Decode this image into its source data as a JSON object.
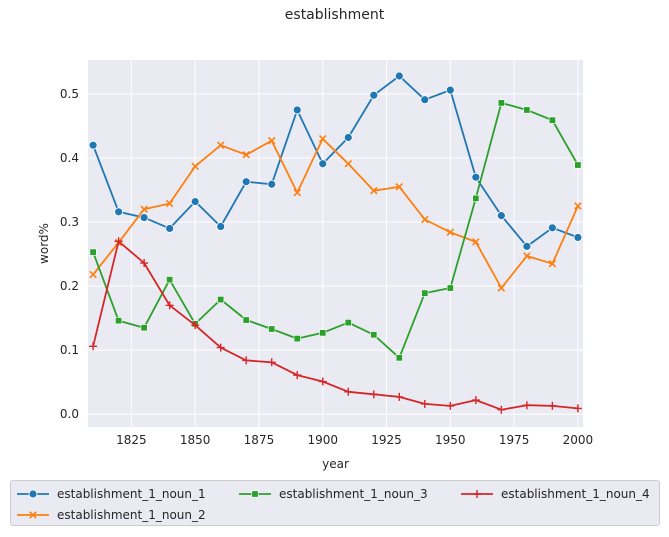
{
  "chart_data": {
    "type": "line",
    "title": "establishment",
    "xlabel": "year",
    "ylabel": "word%",
    "xlim": [
      1808,
      2002
    ],
    "ylim": [
      -0.02,
      0.553
    ],
    "x_ticks": [
      "1825",
      "1850",
      "1875",
      "1900",
      "1925",
      "1950",
      "1975",
      "2000"
    ],
    "y_ticks": [
      "0.0",
      "0.1",
      "0.2",
      "0.3",
      "0.4",
      "0.5"
    ],
    "grid": true,
    "legend_position": "below",
    "x": [
      1810,
      1820,
      1830,
      1840,
      1850,
      1860,
      1870,
      1880,
      1890,
      1900,
      1910,
      1920,
      1930,
      1940,
      1950,
      1960,
      1970,
      1980,
      1990,
      2000
    ],
    "series": [
      {
        "name": "establishment_1_noun_1",
        "color": "#1f77b4",
        "marker": "circle",
        "values": [
          0.42,
          0.316,
          0.307,
          0.29,
          0.332,
          0.293,
          0.363,
          0.359,
          0.475,
          0.391,
          0.432,
          0.498,
          0.528,
          0.491,
          0.506,
          0.37,
          0.31,
          0.262,
          0.291,
          0.276
        ]
      },
      {
        "name": "establishment_1_noun_2",
        "color": "#ff7f0e",
        "marker": "x",
        "values": [
          0.218,
          0.268,
          0.32,
          0.329,
          0.387,
          0.42,
          0.405,
          0.427,
          0.346,
          0.43,
          0.391,
          0.349,
          0.355,
          0.304,
          0.284,
          0.269,
          0.197,
          0.247,
          0.235,
          0.325
        ]
      },
      {
        "name": "establishment_1_noun_3",
        "color": "#2ca02c",
        "marker": "square",
        "values": [
          0.253,
          0.146,
          0.135,
          0.21,
          0.141,
          0.179,
          0.147,
          0.133,
          0.118,
          0.127,
          0.143,
          0.124,
          0.088,
          0.189,
          0.197,
          0.337,
          0.486,
          0.475,
          0.459,
          0.389
        ]
      },
      {
        "name": "establishment_1_noun_4",
        "color": "#d62728",
        "marker": "plus",
        "values": [
          0.106,
          0.27,
          0.236,
          0.17,
          0.139,
          0.104,
          0.084,
          0.081,
          0.061,
          0.051,
          0.035,
          0.031,
          0.027,
          0.016,
          0.013,
          0.022,
          0.007,
          0.014,
          0.013,
          0.009
        ]
      }
    ]
  }
}
